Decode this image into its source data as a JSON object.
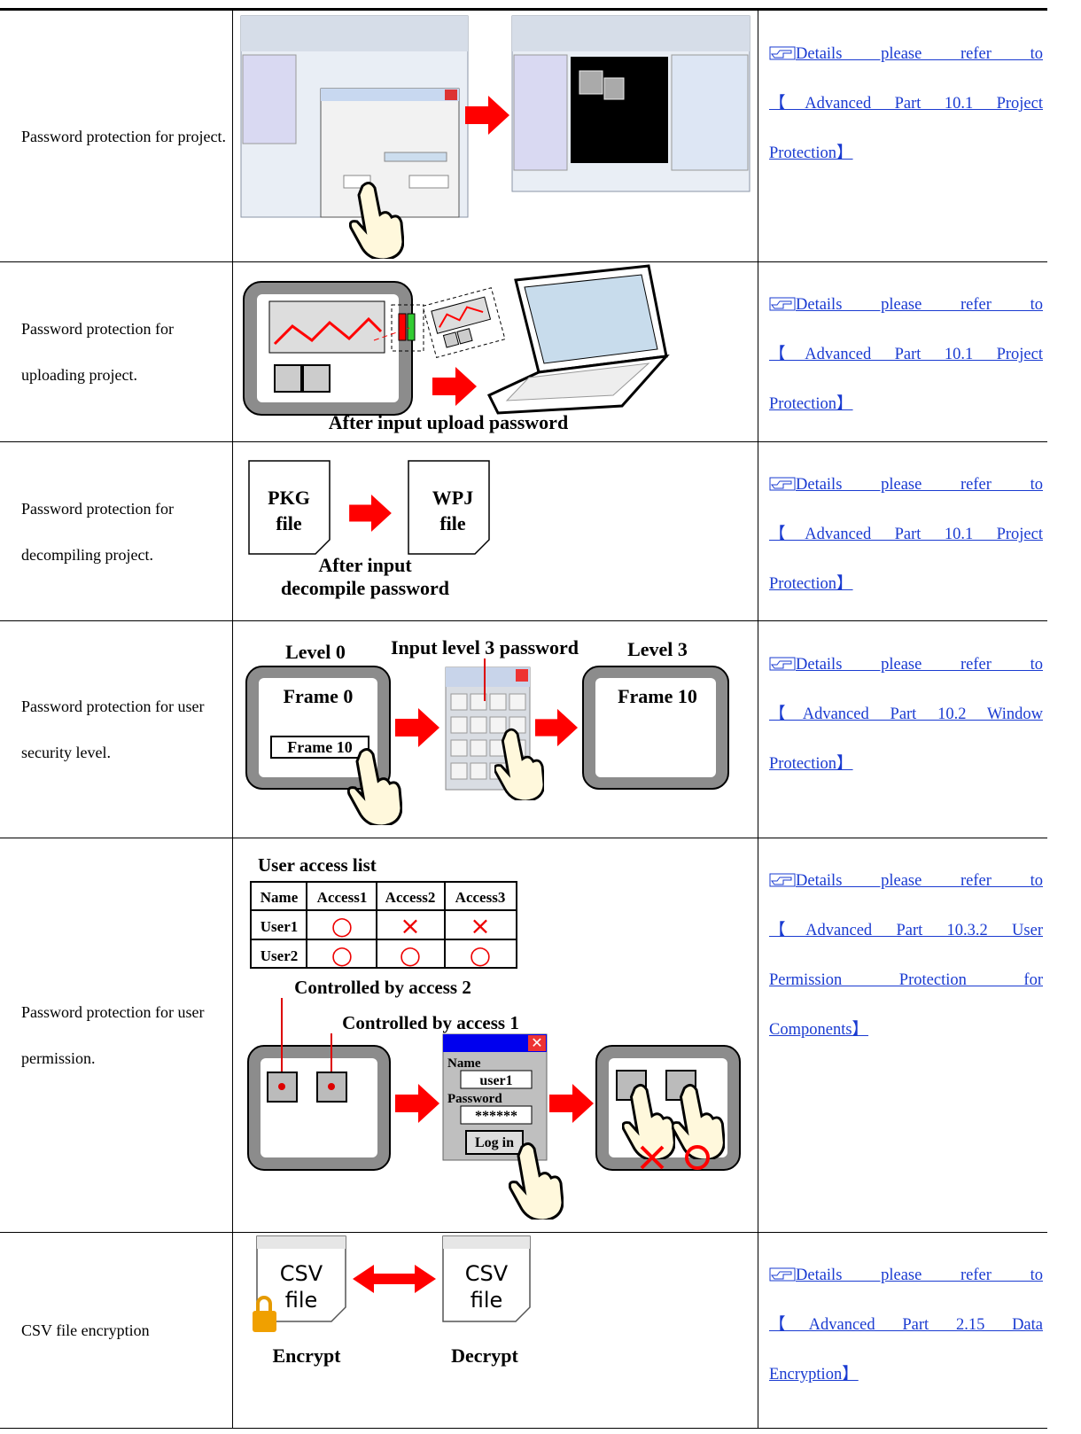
{
  "rows": [
    {
      "description": "Password protection for project.",
      "reference": [
        "Details please refer to",
        "【Advanced Part 10.1 Project",
        "Protection】"
      ]
    },
    {
      "description": "Password protection for uploading project.",
      "figure": {
        "caption": "After input upload password"
      },
      "reference": [
        "Details please refer to",
        "【Advanced Part 10.1 Project",
        "Protection】"
      ]
    },
    {
      "description": "Password protection for decompiling project.",
      "figure": {
        "source": [
          "PKG",
          "file"
        ],
        "target": [
          "WPJ",
          "file"
        ],
        "caption": [
          "After input",
          "decompile password"
        ]
      },
      "reference": [
        "Details please refer to",
        "【Advanced Part 10.1 Project",
        "Protection】"
      ]
    },
    {
      "description": "Password protection for user security level.",
      "figure": {
        "left_title": "Level 0",
        "center_title": "Input level 3 password",
        "right_title": "Level 3",
        "left_frame": "Frame 0",
        "button": "Frame 10",
        "right_frame": "Frame 10"
      },
      "reference": [
        "Details please refer to",
        "【Advanced Part 10.2 Window",
        "Protection】"
      ]
    },
    {
      "description": "Password protection for user permission.",
      "figure": {
        "table_title": "User access list",
        "table": {
          "header": [
            "Name",
            "Access1",
            "Access2",
            "Access3"
          ],
          "rows": [
            [
              "User1",
              "○",
              "×",
              "×"
            ],
            [
              "User2",
              "○",
              "○",
              "○"
            ]
          ]
        },
        "label_2": "Controlled by access 2",
        "label_1": "Controlled by access 1",
        "dialog": {
          "name_label": "Name",
          "name": "user1",
          "password_label": "Password",
          "password": "******",
          "button": "Log in"
        }
      },
      "reference": [
        "Details please refer to",
        "【Advanced Part 10.3.2 User",
        "Permission Protection for",
        "Components】"
      ]
    },
    {
      "description": "CSV file encryption",
      "figure": {
        "source": [
          "CSV",
          "file"
        ],
        "target": [
          "CSV",
          "file"
        ],
        "source_label": "Encrypt",
        "target_label": "Decrypt"
      },
      "reference": [
        "Details please refer to",
        "【Advanced Part 2.15 Data",
        "Encryption】"
      ]
    }
  ]
}
